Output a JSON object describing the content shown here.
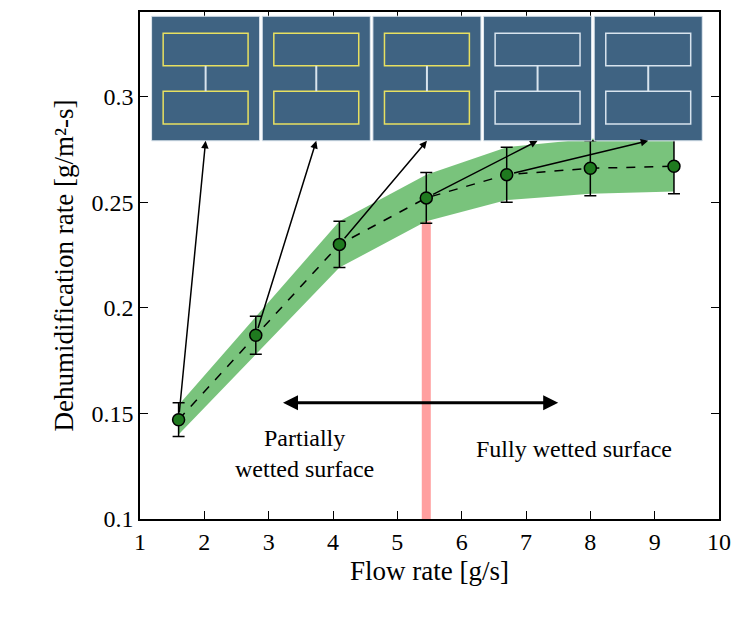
{
  "chart_data": {
    "type": "scatter",
    "x_label": "Flow rate [g/s]",
    "y_label": "Dehumidification rate [g/m²-s]",
    "x": [
      1.6,
      2.8,
      4.1,
      5.45,
      6.7,
      8.0,
      9.3
    ],
    "values": [
      0.147,
      0.187,
      0.23,
      0.252,
      0.263,
      0.266,
      0.267
    ],
    "error": [
      0.008,
      0.009,
      0.011,
      0.012,
      0.013,
      0.013,
      0.013
    ],
    "band_lower": [
      0.14,
      0.178,
      0.219,
      0.241,
      0.251,
      0.254,
      0.255
    ],
    "band_upper": [
      0.154,
      0.196,
      0.241,
      0.263,
      0.276,
      0.28,
      0.28
    ],
    "color": "#1f7a1f",
    "marker": "circle",
    "line_style": "dash",
    "xlim": [
      1,
      10
    ],
    "xticks": [
      1,
      2,
      3,
      4,
      5,
      6,
      7,
      8,
      9,
      10
    ],
    "ylim": [
      0.1,
      0.34
    ],
    "yticks": [
      0.1,
      0.15,
      0.2,
      0.25,
      0.3
    ],
    "grid": false,
    "transition_flow_rate": 5.45,
    "annotations": [
      "Partially\nwetted surface",
      "Fully wetted surface"
    ]
  }
}
